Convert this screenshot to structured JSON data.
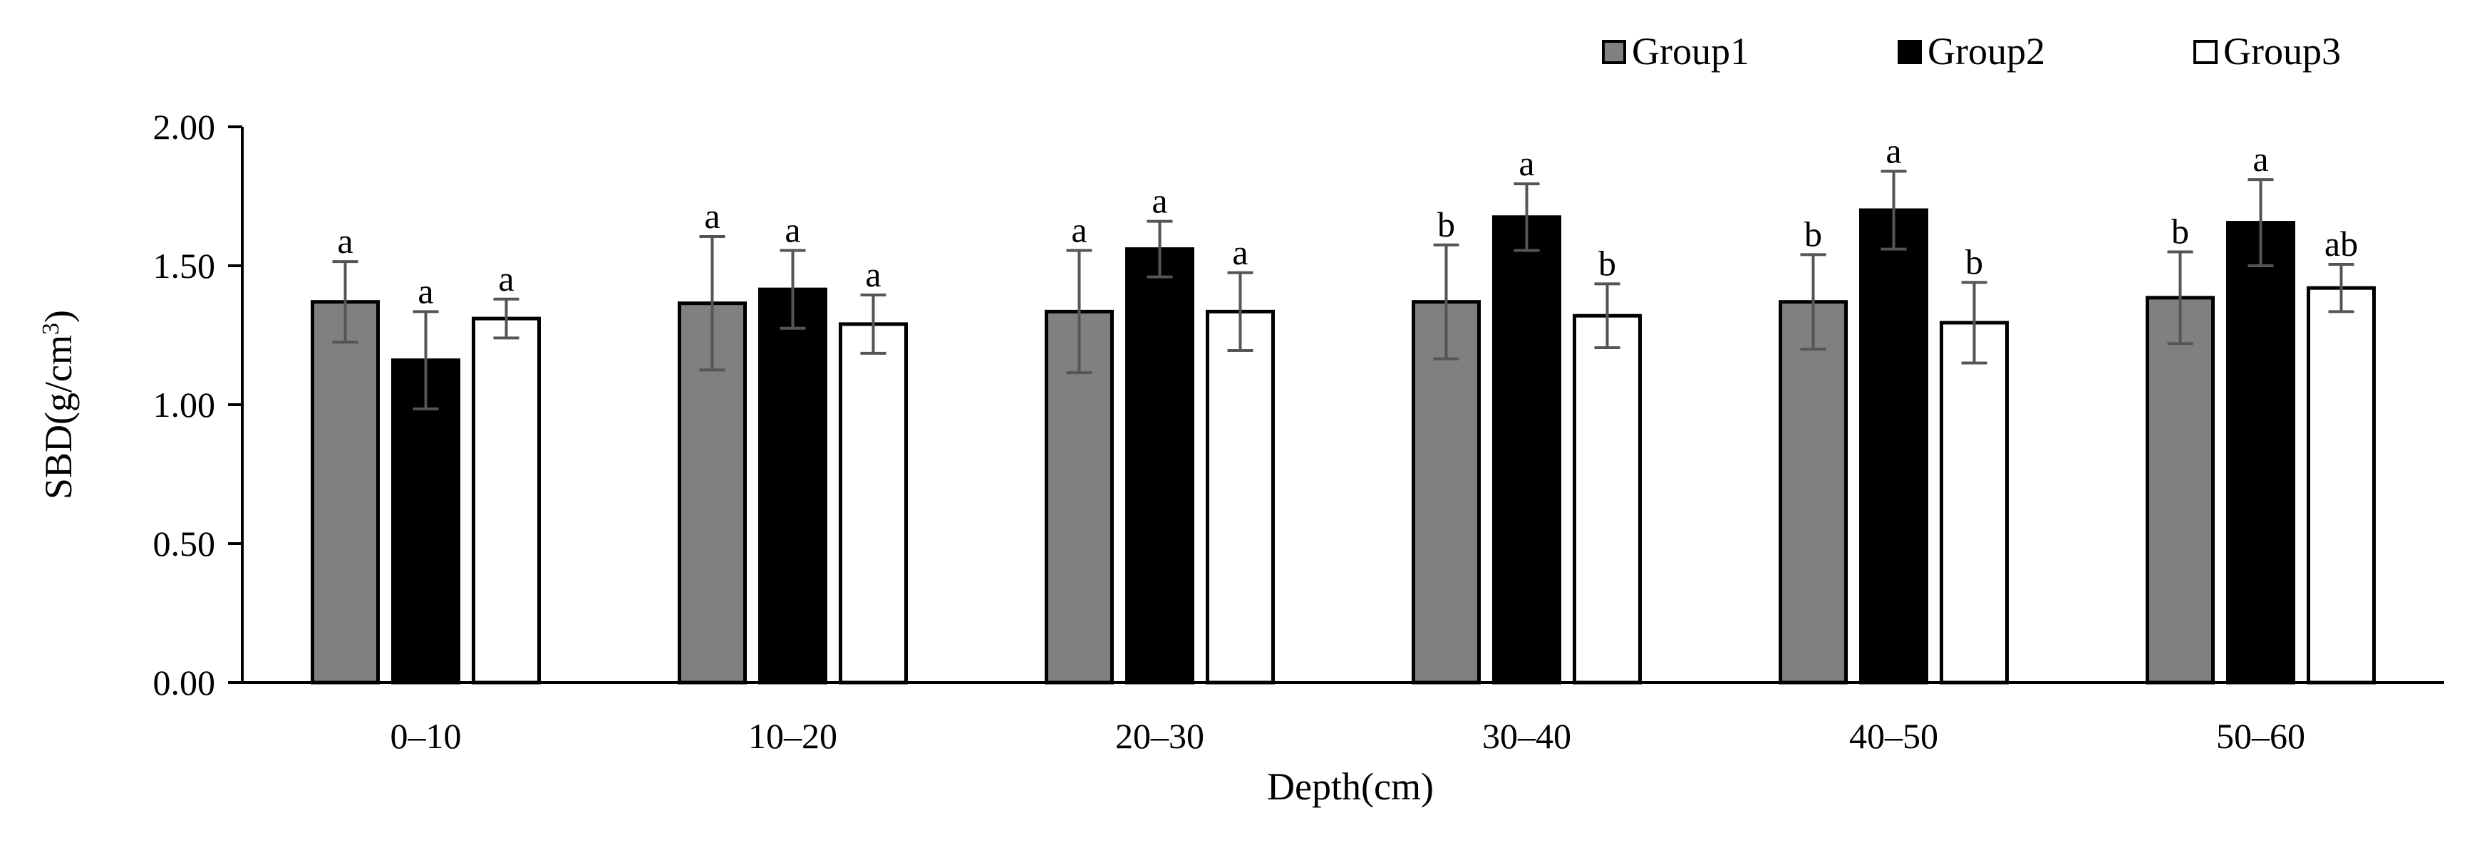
{
  "chart_data": {
    "type": "bar",
    "title": "",
    "xlabel": "Depth(cm)",
    "ylabel": "SBD(g/cm",
    "ylabel_sup": "3",
    "ylabel_close": ")",
    "ylim": [
      0,
      2
    ],
    "yticks": [
      {
        "value": 0,
        "label": "0.00"
      },
      {
        "value": 0.5,
        "label": "0.50"
      },
      {
        "value": 1,
        "label": "1.00"
      },
      {
        "value": 1.5,
        "label": "1.50"
      },
      {
        "value": 2,
        "label": "2.00"
      }
    ],
    "categories": [
      "0–10",
      "10–20",
      "20–30",
      "30–40",
      "40–50",
      "50–60"
    ],
    "legend_position": "top-right",
    "series": [
      {
        "name": "Group1",
        "color": "#808080",
        "values": [
          1.37,
          1.365,
          1.335,
          1.37,
          1.37,
          1.385
        ],
        "errors": [
          0.145,
          0.24,
          0.22,
          0.205,
          0.17,
          0.165
        ],
        "significance": [
          "a",
          "a",
          "a",
          "b",
          "b",
          "b"
        ]
      },
      {
        "name": "Group2",
        "color": "#000000",
        "values": [
          1.16,
          1.415,
          1.56,
          1.675,
          1.7,
          1.655
        ],
        "errors": [
          0.175,
          0.14,
          0.1,
          0.12,
          0.14,
          0.155
        ],
        "significance": [
          "a",
          "a",
          "a",
          "a",
          "a",
          "a"
        ]
      },
      {
        "name": "Group3",
        "color": "#ffffff",
        "values": [
          1.31,
          1.29,
          1.335,
          1.32,
          1.295,
          1.42
        ],
        "errors": [
          0.07,
          0.105,
          0.14,
          0.115,
          0.145,
          0.085
        ],
        "significance": [
          "a",
          "a",
          "a",
          "b",
          "b",
          "ab"
        ]
      }
    ]
  }
}
